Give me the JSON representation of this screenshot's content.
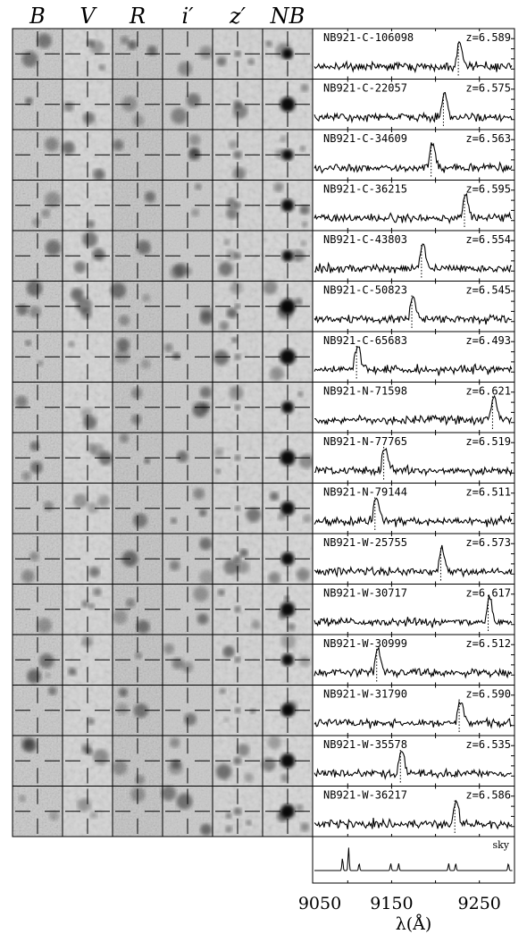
{
  "bands": [
    "B",
    "V",
    "R",
    "i′",
    "z′",
    "NB"
  ],
  "objects": [
    {
      "id": "NB921-C-106098",
      "z": "z=6.589"
    },
    {
      "id": "NB921-C-22057",
      "z": "z=6.575"
    },
    {
      "id": "NB921-C-34609",
      "z": "z=6.563"
    },
    {
      "id": "NB921-C-36215",
      "z": "z=6.595"
    },
    {
      "id": "NB921-C-43803",
      "z": "z=6.554"
    },
    {
      "id": "NB921-C-50823",
      "z": "z=6.545"
    },
    {
      "id": "NB921-C-65683",
      "z": "z=6.493"
    },
    {
      "id": "NB921-N-71598",
      "z": "z=6.621"
    },
    {
      "id": "NB921-N-77765",
      "z": "z=6.519"
    },
    {
      "id": "NB921-N-79144",
      "z": "z=6.511"
    },
    {
      "id": "NB921-W-25755",
      "z": "z=6.573"
    },
    {
      "id": "NB921-W-30717",
      "z": "z=6.617"
    },
    {
      "id": "NB921-W-30999",
      "z": "z=6.512"
    },
    {
      "id": "NB921-W-31790",
      "z": "z=6.590"
    },
    {
      "id": "NB921-W-35578",
      "z": "z=6.535"
    },
    {
      "id": "NB921-W-36217",
      "z": "z=6.586"
    }
  ],
  "sky_label": "sky",
  "x_ticks": [
    "9050",
    "9150",
    "9250"
  ],
  "x_axis_label": "λ(Å)",
  "chart_data": {
    "type": "line",
    "xlabel": "λ(Å)",
    "xlim": [
      9060,
      9290
    ],
    "x_ticks": [
      9050,
      9150,
      9250
    ],
    "panels": [
      {
        "label": "NB921-C-106098",
        "z": 6.589,
        "line_center": 9226
      },
      {
        "label": "NB921-C-22057",
        "z": 6.575,
        "line_center": 9209
      },
      {
        "label": "NB921-C-34609",
        "z": 6.563,
        "line_center": 9195
      },
      {
        "label": "NB921-C-36215",
        "z": 6.595,
        "line_center": 9233
      },
      {
        "label": "NB921-C-43803",
        "z": 6.554,
        "line_center": 9184
      },
      {
        "label": "NB921-C-50823",
        "z": 6.545,
        "line_center": 9173
      },
      {
        "label": "NB921-C-65683",
        "z": 6.493,
        "line_center": 9110
      },
      {
        "label": "NB921-N-71598",
        "z": 6.621,
        "line_center": 9265
      },
      {
        "label": "NB921-N-77765",
        "z": 6.519,
        "line_center": 9141
      },
      {
        "label": "NB921-N-79144",
        "z": 6.511,
        "line_center": 9131
      },
      {
        "label": "NB921-W-25755",
        "z": 6.573,
        "line_center": 9206
      },
      {
        "label": "NB921-W-30717",
        "z": 6.617,
        "line_center": 9260
      },
      {
        "label": "NB921-W-30999",
        "z": 6.512,
        "line_center": 9133
      },
      {
        "label": "NB921-W-31790",
        "z": 6.59,
        "line_center": 9227
      },
      {
        "label": "NB921-W-35578",
        "z": 6.535,
        "line_center": 9160
      },
      {
        "label": "NB921-W-36217",
        "z": 6.586,
        "line_center": 9222
      },
      {
        "label": "sky",
        "sky_lines": [
          9094,
          9101,
          9113,
          9149,
          9158,
          9215,
          9223,
          9283,
          9291
        ]
      }
    ]
  }
}
